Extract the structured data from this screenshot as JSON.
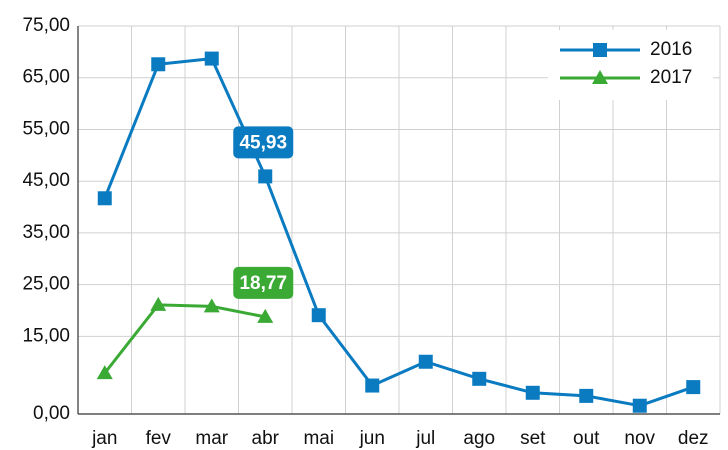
{
  "chart_data": {
    "type": "line",
    "categories": [
      "jan",
      "fev",
      "mar",
      "abr",
      "mai",
      "jun",
      "jul",
      "ago",
      "set",
      "out",
      "nov",
      "dez"
    ],
    "series": [
      {
        "name": "2016",
        "color": "#0a7bc1",
        "marker": "square",
        "values": [
          41.7,
          67.6,
          68.7,
          45.93,
          19.1,
          5.5,
          10.1,
          6.8,
          4.1,
          3.5,
          1.6,
          5.2
        ],
        "value_labels": [
          null,
          null,
          null,
          "45,93",
          null,
          null,
          null,
          null,
          null,
          null,
          null,
          null
        ]
      },
      {
        "name": "2017",
        "color": "#3aaa35",
        "marker": "triangle",
        "values": [
          7.9,
          21.1,
          20.8,
          18.77,
          null,
          null,
          null,
          null,
          null,
          null,
          null,
          null
        ],
        "value_labels": [
          null,
          null,
          null,
          "18,77",
          null,
          null,
          null,
          null,
          null,
          null,
          null,
          null
        ]
      }
    ],
    "ylim": [
      0,
      75
    ],
    "yticks": [
      {
        "value": 0,
        "label": "0,00"
      },
      {
        "value": 15,
        "label": "15,00"
      },
      {
        "value": 25,
        "label": "25,00"
      },
      {
        "value": 35,
        "label": "35,00"
      },
      {
        "value": 45,
        "label": "45,00"
      },
      {
        "value": 55,
        "label": "55,00"
      },
      {
        "value": 65,
        "label": "65,00"
      },
      {
        "value": 75,
        "label": "75,00"
      }
    ],
    "grid": true,
    "legend": "top-right"
  }
}
